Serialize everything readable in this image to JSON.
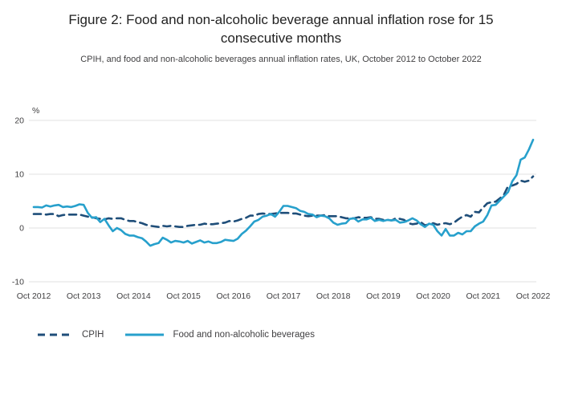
{
  "header": {
    "title": "Figure 2: Food and non-alcoholic beverage annual inflation rose for 15 consecutive months",
    "subtitle": "CPIH, and food and non-alcoholic beverages annual inflation rates, UK, October 2012 to October 2022"
  },
  "chart_data": {
    "type": "line",
    "unit_label": "%",
    "ylim": [
      -10,
      22
    ],
    "y_ticks": [
      20,
      10,
      0,
      -10
    ],
    "x_tick_labels": [
      "Oct 2012",
      "Oct 2013",
      "Oct 2014",
      "Oct 2015",
      "Oct 2016",
      "Oct 2017",
      "Oct 2018",
      "Oct 2019",
      "Oct 2020",
      "Oct 2021",
      "Oct 2022"
    ],
    "x_months_per_tick": 12,
    "grid": "horizontal",
    "legend_position": "bottom-left",
    "colors": {
      "grid": "#e2e2e2",
      "axis_text": "#414042"
    },
    "series": [
      {
        "name": "CPIH",
        "color": "#1f4e79",
        "dashed": true,
        "values": [
          2.6,
          2.6,
          2.6,
          2.5,
          2.6,
          2.6,
          2.2,
          2.4,
          2.5,
          2.5,
          2.5,
          2.5,
          2.3,
          2.1,
          2.0,
          1.8,
          1.7,
          1.6,
          1.8,
          1.7,
          1.8,
          1.8,
          1.5,
          1.3,
          1.3,
          1.1,
          0.9,
          0.6,
          0.4,
          0.3,
          0.2,
          0.4,
          0.3,
          0.4,
          0.3,
          0.2,
          0.2,
          0.4,
          0.5,
          0.6,
          0.6,
          0.8,
          0.7,
          0.7,
          0.8,
          0.9,
          1.0,
          1.3,
          1.2,
          1.4,
          1.7,
          1.9,
          2.3,
          2.3,
          2.6,
          2.7,
          2.6,
          2.6,
          2.7,
          2.8,
          2.8,
          2.8,
          2.7,
          2.7,
          2.5,
          2.3,
          2.2,
          2.3,
          2.3,
          2.3,
          2.4,
          2.2,
          2.2,
          2.2,
          2.0,
          1.8,
          1.8,
          1.8,
          2.0,
          1.9,
          1.9,
          2.0,
          1.7,
          1.7,
          1.5,
          1.5,
          1.4,
          1.8,
          1.7,
          1.5,
          0.9,
          0.7,
          0.8,
          1.1,
          0.5,
          0.7,
          0.9,
          0.6,
          0.8,
          0.9,
          0.7,
          1.0,
          1.6,
          2.1,
          2.4,
          2.1,
          3.0,
          2.9,
          3.8,
          4.6,
          4.8,
          4.9,
          5.5,
          6.2,
          7.8,
          7.9,
          8.2,
          8.8,
          8.6,
          8.8,
          9.6
        ]
      },
      {
        "name": "Food and non-alcoholic beverages",
        "color": "#27a0cc",
        "dashed": false,
        "values": [
          3.9,
          3.9,
          3.8,
          4.2,
          4.0,
          4.2,
          4.3,
          3.9,
          4.0,
          3.9,
          4.1,
          4.4,
          4.3,
          2.8,
          1.9,
          2.0,
          1.1,
          1.7,
          0.5,
          -0.6,
          0.0,
          -0.4,
          -1.1,
          -1.4,
          -1.4,
          -1.7,
          -1.9,
          -2.5,
          -3.3,
          -3.0,
          -2.8,
          -1.8,
          -2.2,
          -2.7,
          -2.4,
          -2.5,
          -2.7,
          -2.4,
          -2.9,
          -2.6,
          -2.3,
          -2.7,
          -2.5,
          -2.8,
          -2.8,
          -2.6,
          -2.2,
          -2.3,
          -2.4,
          -2.0,
          -1.1,
          -0.5,
          0.3,
          1.2,
          1.5,
          2.1,
          2.3,
          2.6,
          2.1,
          3.0,
          4.1,
          4.1,
          3.9,
          3.7,
          3.2,
          3.0,
          2.6,
          2.5,
          2.0,
          2.3,
          2.2,
          1.8,
          1.0,
          0.6,
          0.8,
          0.9,
          1.7,
          1.8,
          1.2,
          1.6,
          1.6,
          1.9,
          1.3,
          1.5,
          1.3,
          1.5,
          1.4,
          1.5,
          1.0,
          1.1,
          1.4,
          1.8,
          1.4,
          0.7,
          0.2,
          0.8,
          0.6,
          -0.6,
          -1.4,
          -0.2,
          -1.4,
          -1.4,
          -0.9,
          -1.2,
          -0.6,
          -0.6,
          0.3,
          0.8,
          1.2,
          2.4,
          4.2,
          4.3,
          5.1,
          5.9,
          6.7,
          8.7,
          9.8,
          12.7,
          13.1,
          14.6,
          16.4
        ]
      }
    ]
  },
  "legend": {
    "items": [
      {
        "label": "CPIH"
      },
      {
        "label": "Food and non-alcoholic beverages"
      }
    ]
  }
}
